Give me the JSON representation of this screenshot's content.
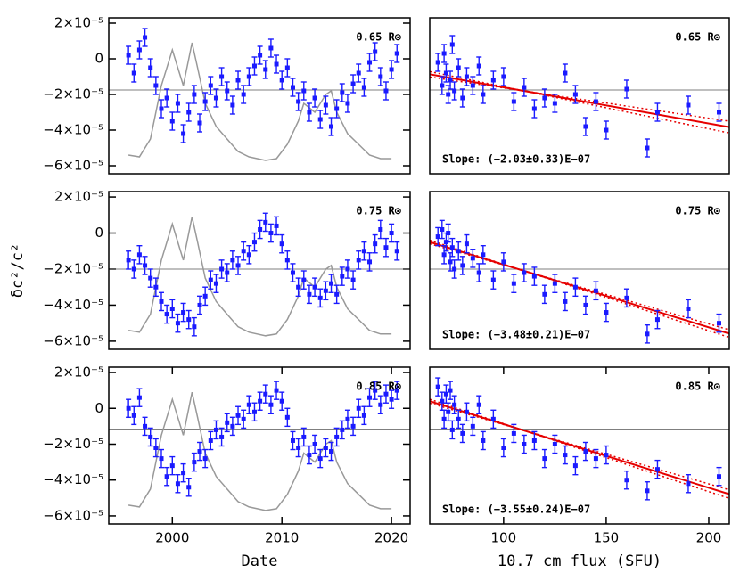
{
  "chart_data": [
    {
      "type": "scatter",
      "label": "0.65 R⊙",
      "x": [
        1996,
        1996.5,
        1997,
        1997.5,
        1998,
        1998.5,
        1999,
        1999.5,
        2000,
        2000.5,
        2001,
        2001.5,
        2002,
        2002.5,
        2003,
        2003.5,
        2004,
        2004.5,
        2005,
        2005.5,
        2006,
        2006.5,
        2007,
        2007.5,
        2008,
        2008.5,
        2009,
        2009.5,
        2010,
        2010.5,
        2011,
        2011.5,
        2012,
        2012.5,
        2013,
        2013.5,
        2014,
        2014.5,
        2015,
        2015.5,
        2016,
        2016.5,
        2017,
        2017.5,
        2018,
        2018.5,
        2019,
        2019.5,
        2020,
        2020.5
      ],
      "values": [
        2e-06,
        -8e-06,
        5e-06,
        1.2e-05,
        -5e-06,
        -1.5e-05,
        -2.8e-05,
        -2.2e-05,
        -3.5e-05,
        -2.5e-05,
        -4.2e-05,
        -3e-05,
        -2e-05,
        -3.6e-05,
        -2.4e-05,
        -1.5e-05,
        -2.2e-05,
        -1e-05,
        -1.8e-05,
        -2.6e-05,
        -1.2e-05,
        -2e-05,
        -1e-05,
        -4e-06,
        2e-06,
        -6e-06,
        6e-06,
        -3e-06,
        -1.2e-05,
        -5e-06,
        -1.6e-05,
        -2.4e-05,
        -1.8e-05,
        -3e-05,
        -2.2e-05,
        -3.4e-05,
        -2.6e-05,
        -3.8e-05,
        -2.8e-05,
        -1.9e-05,
        -2.5e-05,
        -1.4e-05,
        -8e-06,
        -1.6e-05,
        -2e-06,
        4e-06,
        -1e-05,
        -1.8e-05,
        -6e-06,
        3e-06
      ],
      "error": 5e-06,
      "color": "#1a1aff",
      "mean": -1.75e-05,
      "flux_curve": {
        "color": "#999999",
        "x": [
          1996,
          1997,
          1998,
          1999,
          2000,
          2000.5,
          2001,
          2001.8,
          2002.3,
          2003,
          2004,
          2005,
          2006,
          2007,
          2008.5,
          2009.5,
          2010.5,
          2011.5,
          2012,
          2013,
          2014,
          2014.5,
          2015,
          2016,
          2017,
          2018,
          2019,
          2020
        ],
        "values": [
          -5.4e-05,
          -5.5e-05,
          -4.5e-05,
          -1.5e-05,
          5e-06,
          -5e-06,
          -1.5e-05,
          9e-06,
          -5e-06,
          -2.5e-05,
          -3.8e-05,
          -4.5e-05,
          -5.2e-05,
          -5.5e-05,
          -5.7e-05,
          -5.6e-05,
          -4.8e-05,
          -3.5e-05,
          -2.5e-05,
          -3e-05,
          -2e-05,
          -1.8e-05,
          -3e-05,
          -4.2e-05,
          -4.8e-05,
          -5.4e-05,
          -5.6e-05,
          -5.6e-05
        ]
      },
      "xlim": [
        1994.2,
        2021.7
      ],
      "ylim": [
        -6.45e-05,
        2.3e-05
      ],
      "yticks": [
        {
          "value": 2e-05,
          "label": "2×10⁻⁵"
        },
        0,
        {
          "value": -2e-05,
          "label": "−2×10⁻⁵"
        },
        {
          "value": -4e-05,
          "label": "−4×10⁻⁵"
        },
        {
          "value": -6e-05,
          "label": "−6×10⁻⁵"
        }
      ]
    },
    {
      "type": "scatter",
      "label": "0.65 R⊙",
      "annotation": "Slope: (−2.03±0.33)E−07",
      "x": [
        68,
        70,
        71,
        72,
        73,
        74,
        75,
        76,
        78,
        80,
        82,
        85,
        88,
        90,
        95,
        100,
        105,
        110,
        115,
        120,
        125,
        130,
        135,
        140,
        145,
        150,
        160,
        170,
        175,
        190,
        205
      ],
      "values": [
        -2e-06,
        -1.5e-05,
        3e-06,
        -8e-06,
        -2e-05,
        -1.2e-05,
        8e-06,
        -1.8e-05,
        -5e-06,
        -2.2e-05,
        -1e-05,
        -1.5e-05,
        -4e-06,
        -2e-05,
        -1.2e-05,
        -1e-05,
        -2.4e-05,
        -1.6e-05,
        -2.8e-05,
        -2.2e-05,
        -2.5e-05,
        -8e-06,
        -2e-05,
        -3.8e-05,
        -2.4e-05,
        -4e-05,
        -1.7e-05,
        -5e-05,
        -3e-05,
        -2.6e-05,
        -3e-05
      ],
      "error": 5e-06,
      "color": "#1a1aff",
      "mean": -1.75e-05,
      "fit": {
        "slope": -2.03e-07,
        "slope_error": 3.3e-08,
        "intercept": 4.3e-06,
        "pivot": 110,
        "color": "#e60000"
      },
      "xlim": [
        64,
        210
      ],
      "ylim": [
        -6.45e-05,
        2.3e-05
      ]
    },
    {
      "type": "scatter",
      "label": "0.75 R⊙",
      "ylabel": "δc²/c²",
      "x": [
        1996,
        1996.5,
        1997,
        1997.5,
        1998,
        1998.5,
        1999,
        1999.5,
        2000,
        2000.5,
        2001,
        2001.5,
        2002,
        2002.5,
        2003,
        2003.5,
        2004,
        2004.5,
        2005,
        2005.5,
        2006,
        2006.5,
        2007,
        2007.5,
        2008,
        2008.5,
        2009,
        2009.5,
        2010,
        2010.5,
        2011,
        2011.5,
        2012,
        2012.5,
        2013,
        2013.5,
        2014,
        2014.5,
        2015,
        2015.5,
        2016,
        2016.5,
        2017,
        2017.5,
        2018,
        2018.5,
        2019,
        2019.5,
        2020,
        2020.5
      ],
      "values": [
        -1.5e-05,
        -2e-05,
        -1.2e-05,
        -1.8e-05,
        -2.5e-05,
        -3e-05,
        -3.8e-05,
        -4.5e-05,
        -4.2e-05,
        -5e-05,
        -4.4e-05,
        -4.8e-05,
        -5.2e-05,
        -4e-05,
        -3.5e-05,
        -2.6e-05,
        -2.8e-05,
        -2e-05,
        -2.2e-05,
        -1.5e-05,
        -1.8e-05,
        -1e-05,
        -1.2e-05,
        -5e-06,
        2e-06,
        6e-06,
        0.0,
        4e-06,
        -6e-06,
        -1.5e-05,
        -2.2e-05,
        -3e-05,
        -2.6e-05,
        -3.4e-05,
        -3e-05,
        -3.6e-05,
        -3.2e-05,
        -2.8e-05,
        -3.4e-05,
        -2.4e-05,
        -2e-05,
        -2.6e-05,
        -1.5e-05,
        -1e-05,
        -1.6e-05,
        -6e-06,
        2e-06,
        -8e-06,
        0.0,
        -1e-05
      ],
      "error": 5e-06,
      "color": "#1a1aff",
      "mean": -2e-05,
      "flux_curve": {
        "color": "#999999",
        "x": [
          1996,
          1997,
          1998,
          1999,
          2000,
          2000.5,
          2001,
          2001.8,
          2002.3,
          2003,
          2004,
          2005,
          2006,
          2007,
          2008.5,
          2009.5,
          2010.5,
          2011.5,
          2012,
          2013,
          2014,
          2014.5,
          2015,
          2016,
          2017,
          2018,
          2019,
          2020
        ],
        "values": [
          -5.4e-05,
          -5.5e-05,
          -4.5e-05,
          -1.5e-05,
          5e-06,
          -5e-06,
          -1.5e-05,
          9e-06,
          -5e-06,
          -2.5e-05,
          -3.8e-05,
          -4.5e-05,
          -5.2e-05,
          -5.5e-05,
          -5.7e-05,
          -5.6e-05,
          -4.8e-05,
          -3.5e-05,
          -2.5e-05,
          -3e-05,
          -2e-05,
          -1.8e-05,
          -3e-05,
          -4.2e-05,
          -4.8e-05,
          -5.4e-05,
          -5.6e-05,
          -5.6e-05
        ]
      },
      "xlim": [
        1994.2,
        2021.7
      ],
      "ylim": [
        -6.45e-05,
        2.3e-05
      ],
      "yticks": [
        {
          "value": 2e-05,
          "label": "2×10⁻⁵"
        },
        0,
        {
          "value": -2e-05,
          "label": "−2×10⁻⁵"
        },
        {
          "value": -4e-05,
          "label": "−4×10⁻⁵"
        },
        {
          "value": -6e-05,
          "label": "−6×10⁻⁵"
        }
      ]
    },
    {
      "type": "scatter",
      "label": "0.75 R⊙",
      "annotation": "Slope: (−3.48±0.21)E−07",
      "x": [
        68,
        70,
        71,
        72,
        73,
        74,
        75,
        76,
        78,
        80,
        82,
        85,
        88,
        90,
        95,
        100,
        105,
        110,
        115,
        120,
        125,
        130,
        135,
        140,
        145,
        150,
        160,
        170,
        175,
        190,
        205
      ],
      "values": [
        -2e-06,
        2e-06,
        -1.2e-05,
        -5e-06,
        0.0,
        -1.6e-05,
        -8e-06,
        -2e-05,
        -1e-05,
        -1.8e-05,
        -6e-06,
        -1.4e-05,
        -2.2e-05,
        -1.2e-05,
        -2.6e-05,
        -1.6e-05,
        -2.8e-05,
        -2.2e-05,
        -2.4e-05,
        -3.4e-05,
        -2.8e-05,
        -3.8e-05,
        -3e-05,
        -4e-05,
        -3.2e-05,
        -4.4e-05,
        -3.6e-05,
        -5.6e-05,
        -4.8e-05,
        -4.2e-05,
        -5e-05
      ],
      "error": 5e-06,
      "color": "#1a1aff",
      "mean": -2e-05,
      "fit": {
        "slope": -3.48e-07,
        "slope_error": 2.1e-08,
        "intercept": 1.73e-05,
        "pivot": 110,
        "color": "#e60000"
      },
      "xlim": [
        64,
        210
      ],
      "ylim": [
        -6.45e-05,
        2.3e-05
      ]
    },
    {
      "type": "scatter",
      "label": "0.85 R⊙",
      "xlabel": "Date",
      "x": [
        1996,
        1996.5,
        1997,
        1997.5,
        1998,
        1998.5,
        1999,
        1999.5,
        2000,
        2000.5,
        2001,
        2001.5,
        2002,
        2002.5,
        2003,
        2003.5,
        2004,
        2004.5,
        2005,
        2005.5,
        2006,
        2006.5,
        2007,
        2007.5,
        2008,
        2008.5,
        2009,
        2009.5,
        2010,
        2010.5,
        2011,
        2011.5,
        2012,
        2012.5,
        2013,
        2013.5,
        2014,
        2014.5,
        2015,
        2015.5,
        2016,
        2016.5,
        2017,
        2017.5,
        2018,
        2018.5,
        2019,
        2019.5,
        2020,
        2020.5
      ],
      "values": [
        0.0,
        -4e-06,
        6e-06,
        -1e-05,
        -1.6e-05,
        -2.2e-05,
        -2.8e-05,
        -3.8e-05,
        -3.2e-05,
        -4.2e-05,
        -3.6e-05,
        -4.4e-05,
        -3e-05,
        -2.4e-05,
        -2.8e-05,
        -1.8e-05,
        -1.2e-05,
        -1.6e-05,
        -8e-06,
        -1e-05,
        -4e-06,
        -6e-06,
        2e-06,
        -2e-06,
        4e-06,
        8e-06,
        2e-06,
        1e-05,
        4e-06,
        -5e-06,
        -1.8e-05,
        -2.2e-05,
        -1.6e-05,
        -2.6e-05,
        -2e-05,
        -2.8e-05,
        -2.2e-05,
        -2.4e-05,
        -1.6e-05,
        -1.2e-05,
        -6e-06,
        -1e-05,
        0.0,
        -4e-06,
        6e-06,
        1e-05,
        2e-06,
        8e-06,
        5e-06,
        1e-05
      ],
      "error": 5e-06,
      "color": "#1a1aff",
      "mean": -1.15e-05,
      "flux_curve": {
        "color": "#999999",
        "x": [
          1996,
          1997,
          1998,
          1999,
          2000,
          2000.5,
          2001,
          2001.8,
          2002.3,
          2003,
          2004,
          2005,
          2006,
          2007,
          2008.5,
          2009.5,
          2010.5,
          2011.5,
          2012,
          2013,
          2014,
          2014.5,
          2015,
          2016,
          2017,
          2018,
          2019,
          2020
        ],
        "values": [
          -5.4e-05,
          -5.5e-05,
          -4.5e-05,
          -1.5e-05,
          5e-06,
          -5e-06,
          -1.5e-05,
          9e-06,
          -5e-06,
          -2.5e-05,
          -3.8e-05,
          -4.5e-05,
          -5.2e-05,
          -5.5e-05,
          -5.7e-05,
          -5.6e-05,
          -4.8e-05,
          -3.5e-05,
          -2.5e-05,
          -3e-05,
          -2e-05,
          -1.8e-05,
          -3e-05,
          -4.2e-05,
          -4.8e-05,
          -5.4e-05,
          -5.6e-05,
          -5.6e-05
        ]
      },
      "xlim": [
        1994.2,
        2021.7
      ],
      "ylim": [
        -6.45e-05,
        2.3e-05
      ],
      "xticks": [
        2000,
        2010,
        2020
      ],
      "yticks": [
        {
          "value": 2e-05,
          "label": "2×10⁻⁵"
        },
        0,
        {
          "value": -2e-05,
          "label": "−2×10⁻⁵"
        },
        {
          "value": -4e-05,
          "label": "−4×10⁻⁵"
        },
        {
          "value": -6e-05,
          "label": "−6×10⁻⁵"
        }
      ]
    },
    {
      "type": "scatter",
      "label": "0.85 R⊙",
      "annotation": "Slope: (−3.55±0.24)E−07",
      "xlabel": "10.7 cm flux (SFU)",
      "x": [
        68,
        70,
        71,
        72,
        73,
        74,
        75,
        76,
        78,
        80,
        82,
        85,
        88,
        90,
        95,
        100,
        105,
        110,
        115,
        120,
        125,
        130,
        135,
        140,
        145,
        150,
        160,
        170,
        175,
        190,
        205
      ],
      "values": [
        1.2e-05,
        4e-06,
        -6e-06,
        8e-06,
        -2e-06,
        1e-05,
        -1.2e-05,
        2e-06,
        -6e-06,
        -1.4e-05,
        -2e-06,
        -1e-05,
        2e-06,
        -1.8e-05,
        -6e-06,
        -2.2e-05,
        -1.4e-05,
        -2e-05,
        -1.8e-05,
        -2.8e-05,
        -2e-05,
        -2.6e-05,
        -3.2e-05,
        -2.4e-05,
        -2.8e-05,
        -2.6e-05,
        -4e-05,
        -4.6e-05,
        -3.4e-05,
        -4.2e-05,
        -3.8e-05
      ],
      "error": 5e-06,
      "color": "#1a1aff",
      "mean": -1.15e-05,
      "fit": {
        "slope": -3.55e-07,
        "slope_error": 2.4e-08,
        "intercept": 2.67e-05,
        "pivot": 110,
        "color": "#e60000"
      },
      "xlim": [
        64,
        210
      ],
      "ylim": [
        -6.45e-05,
        2.3e-05
      ],
      "xticks": [
        100,
        150,
        200
      ]
    }
  ]
}
